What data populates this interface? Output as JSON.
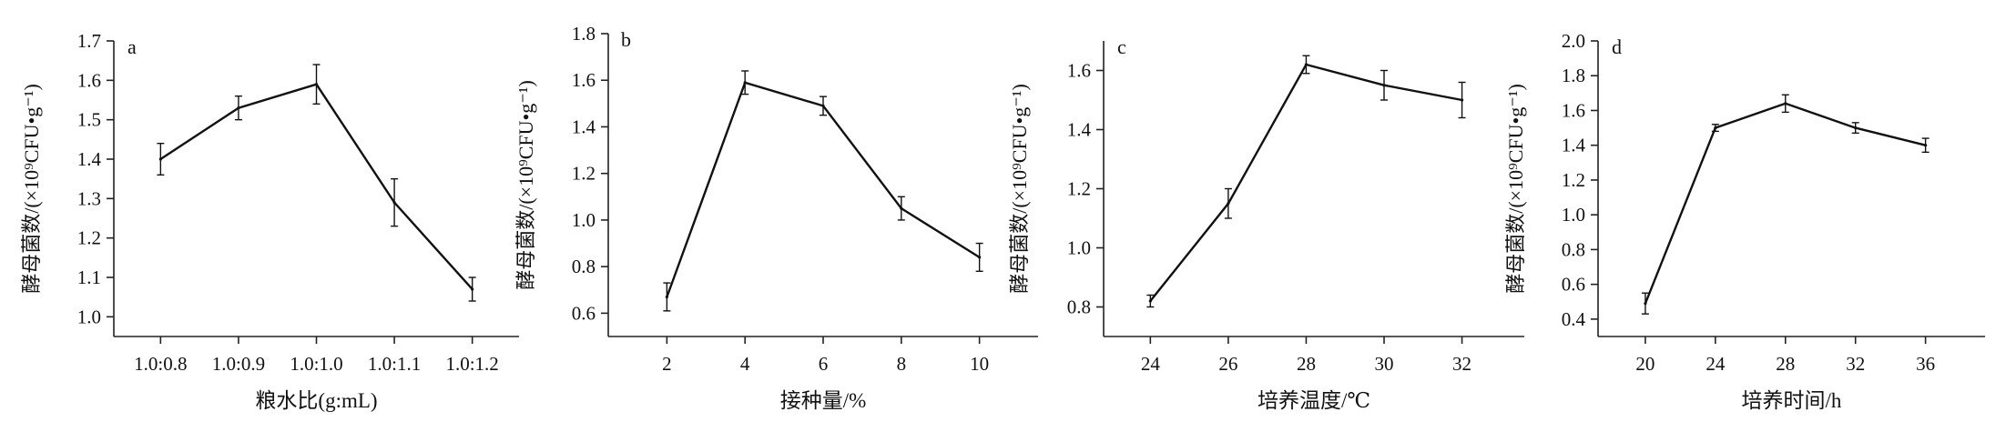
{
  "chart_data": [
    {
      "panel": "a",
      "type": "line",
      "x_is_categorical": true,
      "categories": [
        "1.0:0.8",
        "1.0:0.9",
        "1.0:1.0",
        "1.0:1.1",
        "1.0:1.2"
      ],
      "values": [
        1.4,
        1.53,
        1.59,
        1.29,
        1.07
      ],
      "errors": [
        0.04,
        0.03,
        0.05,
        0.06,
        0.03
      ],
      "xlabel": "粮水比(g:mL)",
      "ylabel": "酵母菌数/(×10⁹CFU•g⁻¹)",
      "ylim": [
        0.95,
        1.7
      ],
      "yticks": [
        "1.0",
        "1.1",
        "1.2",
        "1.3",
        "1.4",
        "1.5",
        "1.6",
        "1.7"
      ],
      "grid": false
    },
    {
      "panel": "b",
      "type": "line",
      "x_is_categorical": false,
      "x": [
        2,
        4,
        6,
        8,
        10
      ],
      "values": [
        0.67,
        1.59,
        1.49,
        1.05,
        0.84
      ],
      "errors": [
        0.06,
        0.05,
        0.04,
        0.05,
        0.06
      ],
      "xticks": [
        "2",
        "4",
        "6",
        "8",
        "10"
      ],
      "xlim": [
        0.5,
        11.5
      ],
      "xlabel": "接种量/%",
      "ylabel": "酵母菌数/(×10⁹CFU•g⁻¹)",
      "ylim": [
        0.5,
        1.8
      ],
      "yticks": [
        "0.6",
        "0.8",
        "1.0",
        "1.2",
        "1.4",
        "1.6",
        "1.8"
      ],
      "grid": false
    },
    {
      "panel": "c",
      "type": "line",
      "x_is_categorical": false,
      "x": [
        24,
        26,
        28,
        30,
        32
      ],
      "values": [
        0.82,
        1.15,
        1.62,
        1.55,
        1.5
      ],
      "errors": [
        0.02,
        0.05,
        0.03,
        0.05,
        0.06
      ],
      "xticks": [
        "24",
        "26",
        "28",
        "30",
        "32"
      ],
      "xlim": [
        22.8,
        33.6
      ],
      "xlabel": "培养温度/℃",
      "ylabel": "酵母菌数/(×10⁹CFU•g⁻¹)",
      "ylim": [
        0.7,
        1.7
      ],
      "yticks": [
        "0.8",
        "1.0",
        "1.2",
        "1.4",
        "1.6"
      ],
      "grid": false
    },
    {
      "panel": "d",
      "type": "line",
      "x_is_categorical": false,
      "x": [
        20,
        24,
        28,
        32,
        36
      ],
      "values": [
        0.49,
        1.5,
        1.64,
        1.5,
        1.4
      ],
      "errors": [
        0.06,
        0.02,
        0.05,
        0.03,
        0.04
      ],
      "xticks": [
        "20",
        "24",
        "28",
        "32",
        "36"
      ],
      "xlim": [
        17.3,
        39.4
      ],
      "xlabel": "培养时间/h",
      "ylabel": "酵母菌数/(×10⁹CFU•g⁻¹)",
      "ylim": [
        0.3,
        2.0
      ],
      "yticks": [
        "0.4",
        "0.6",
        "0.8",
        "1.0",
        "1.2",
        "1.4",
        "1.6",
        "1.8",
        "2.0"
      ],
      "grid": false
    }
  ]
}
